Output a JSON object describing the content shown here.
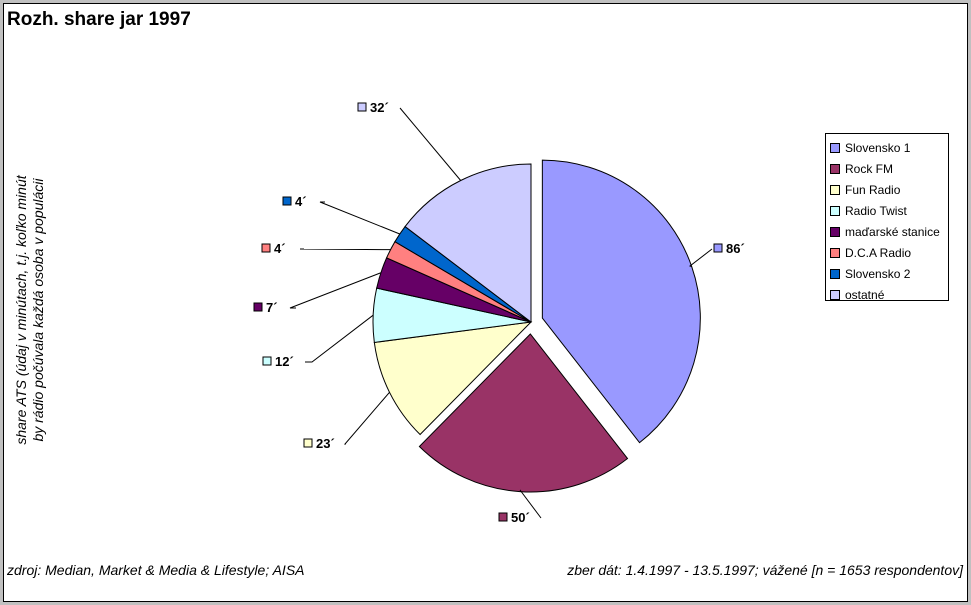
{
  "chart_data": {
    "type": "pie",
    "title": "Rozh. share jar 1997",
    "ylabel_lines": [
      "share ATS (údaj v minútach, t.j. koľko minút",
      "by rádio počúvala každá osoba v populácii"
    ],
    "categories": [
      "Slovensko 1",
      "Rock FM",
      "Fun Radio",
      "Radio Twist",
      "maďarské stanice",
      "D.C.A Radio",
      "Slovensko 2",
      "ostatné"
    ],
    "values": [
      86,
      50,
      23,
      12,
      7,
      4,
      4,
      32
    ],
    "data_labels": [
      "86´",
      "50´",
      "23´",
      "12´",
      "7´",
      "4´",
      "4´",
      "32´"
    ],
    "colors": [
      "#9999ff",
      "#993366",
      "#ffffcc",
      "#ccffff",
      "#660066",
      "#ff8080",
      "#0066cc",
      "#ccccff"
    ],
    "legend_position": "right",
    "exploded": [
      "Slovensko 1",
      "Rock FM"
    ]
  },
  "footer": {
    "source_left": "zdroj: Median, Market & Media & Lifestyle; AISA",
    "source_right": "zber dát: 1.4.1997 - 13.5.1997; vážené [n = 1653 respondentov]"
  }
}
